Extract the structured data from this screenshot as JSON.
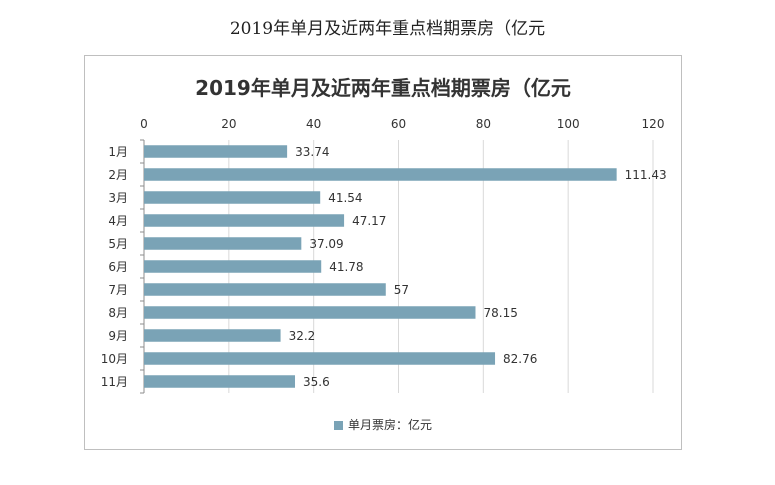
{
  "page": {
    "caption": "2019年单月及近两年重点档期票房（亿元"
  },
  "colors": {
    "bar": "#7aa3b6",
    "grid": "#d9d9d9",
    "axis": "#8c8c8c",
    "text": "#333333"
  },
  "chart_data": {
    "type": "bar",
    "orientation": "horizontal",
    "title": "2019年单月及近两年重点档期票房（亿元",
    "xlabel": "",
    "ylabel": "",
    "x_axis_position": "top",
    "xlim": [
      0,
      120
    ],
    "xticks": [
      0,
      20,
      40,
      60,
      80,
      100,
      120
    ],
    "grid": true,
    "legend_position": "bottom",
    "categories": [
      "1月",
      "2月",
      "3月",
      "4月",
      "5月",
      "6月",
      "7月",
      "8月",
      "9月",
      "10月",
      "11月"
    ],
    "series": [
      {
        "name": "单月票房：亿元",
        "values": [
          33.74,
          111.43,
          41.54,
          47.17,
          37.09,
          41.78,
          57,
          78.15,
          32.2,
          82.76,
          35.6
        ],
        "value_labels": [
          "33.74",
          "111.43",
          "41.54",
          "47.17",
          "37.09",
          "41.78",
          "57",
          "78.15",
          "32.2",
          "82.76",
          "35.6"
        ]
      }
    ]
  }
}
